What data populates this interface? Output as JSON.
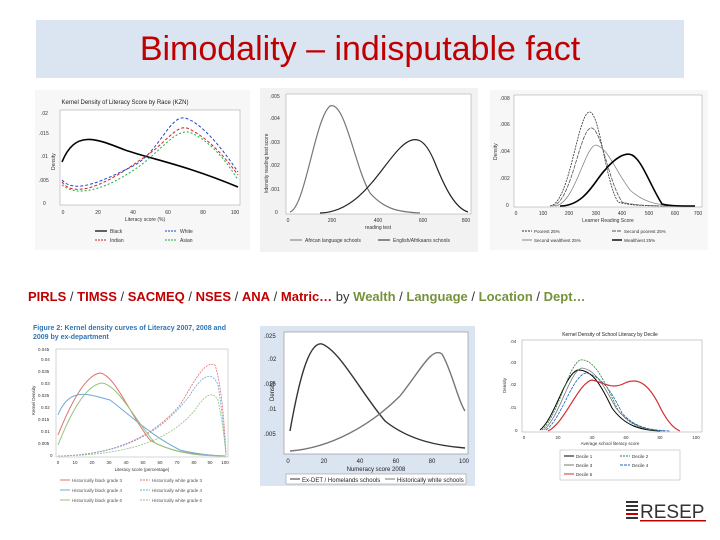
{
  "slide": {
    "title": "Bimodality – indisputable fact",
    "caption": {
      "parts": [
        {
          "text": "PIRLS",
          "style": "red"
        },
        {
          "text": " / ",
          "style": "plain"
        },
        {
          "text": "TIMSS",
          "style": "red"
        },
        {
          "text": " / ",
          "style": "plain"
        },
        {
          "text": "SACMEQ",
          "style": "red"
        },
        {
          "text": " / ",
          "style": "plain"
        },
        {
          "text": "NSES",
          "style": "red"
        },
        {
          "text": " / ",
          "style": "plain"
        },
        {
          "text": "ANA",
          "style": "red"
        },
        {
          "text": " / ",
          "style": "plain"
        },
        {
          "text": "Matric…",
          "style": "red"
        },
        {
          "text": " by ",
          "style": "plain"
        },
        {
          "text": "Wealth",
          "style": "green"
        },
        {
          "text": " / ",
          "style": "plain"
        },
        {
          "text": "Language",
          "style": "green"
        },
        {
          "text": " / ",
          "style": "plain"
        },
        {
          "text": "Location",
          "style": "green"
        },
        {
          "text": " / ",
          "style": "plain"
        },
        {
          "text": "Dept…",
          "style": "green"
        }
      ]
    },
    "logo": {
      "text": "RESEP",
      "color": "#c00000"
    }
  },
  "charts": {
    "c1": {
      "title": "Kernel Density of Literacy Score by Race (KZN)",
      "xlabel": "Literacy score (%)",
      "ylabel": "Density",
      "xticks": [
        "0",
        "20",
        "40",
        "60",
        "80",
        "100"
      ],
      "yticks": [
        "0",
        ".005",
        ".01",
        ".015",
        ".02"
      ],
      "legend": [
        "Black",
        "White",
        "Indian",
        "Asian"
      ]
    },
    "c2": {
      "xlabel": "reading test",
      "ylabel": "kdensity reading test score",
      "xticks": [
        "0",
        "200",
        "400",
        "600",
        "800"
      ],
      "yticks": [
        "0",
        ".001",
        ".002",
        ".003",
        ".004",
        ".005"
      ],
      "legend": [
        "African language schools",
        "English/Afrikaans schools"
      ]
    },
    "c3": {
      "xlabel": "Learner Reading Score",
      "ylabel": "Density",
      "xticks": [
        "0",
        "100",
        "200",
        "300",
        "400",
        "500",
        "600",
        "700"
      ],
      "yticks": [
        "0",
        ".002",
        ".004",
        ".006",
        ".008"
      ],
      "legend": [
        "Poorest 25%",
        "Second poorest 25%",
        "Second wealthiest 25%",
        "Wealthiest 25%"
      ]
    },
    "c4": {
      "title": "Figure 2: Kernel density curves of Literacy 2007, 2008 and 2009 by ex-department",
      "xlabel": "Literacy score (percentage)",
      "ylabel": "Kernel Density",
      "xticks": [
        "0",
        "10",
        "20",
        "30",
        "40",
        "50",
        "60",
        "70",
        "80",
        "90",
        "100"
      ],
      "yticks": [
        "0",
        "0.005",
        "0.01",
        "0.015",
        "0.02",
        "0.025",
        "0.03",
        "0.035",
        "0.04",
        "0.045"
      ],
      "legend": [
        "Historically black grade 3",
        "Historically white grade 3",
        "Historically black grade 4",
        "Historically white grade 4",
        "Historically black grade 6",
        "Historically white grade 6"
      ]
    },
    "c5": {
      "xlabel": "Numeracy score 2008",
      "ylabel": "Density",
      "xticks": [
        "0",
        "20",
        "40",
        "60",
        "80",
        "100"
      ],
      "yticks": [
        ".005",
        ".01",
        ".015",
        ".02",
        ".025"
      ],
      "legend": [
        "Ex-DET / Homelands schools",
        "Historically white schools"
      ]
    },
    "c6": {
      "title": "Kernel Density of School Literacy by Decile",
      "xlabel": "Average school literacy score",
      "ylabel": "Density",
      "xticks": [
        "0",
        "20",
        "40",
        "60",
        "80",
        "100"
      ],
      "yticks": [
        "0",
        ".01",
        ".02",
        ".03",
        ".04"
      ],
      "legend": [
        "Decile 1",
        "Decile 2",
        "Decile 3",
        "Decile 4",
        "Decile 5"
      ]
    }
  }
}
